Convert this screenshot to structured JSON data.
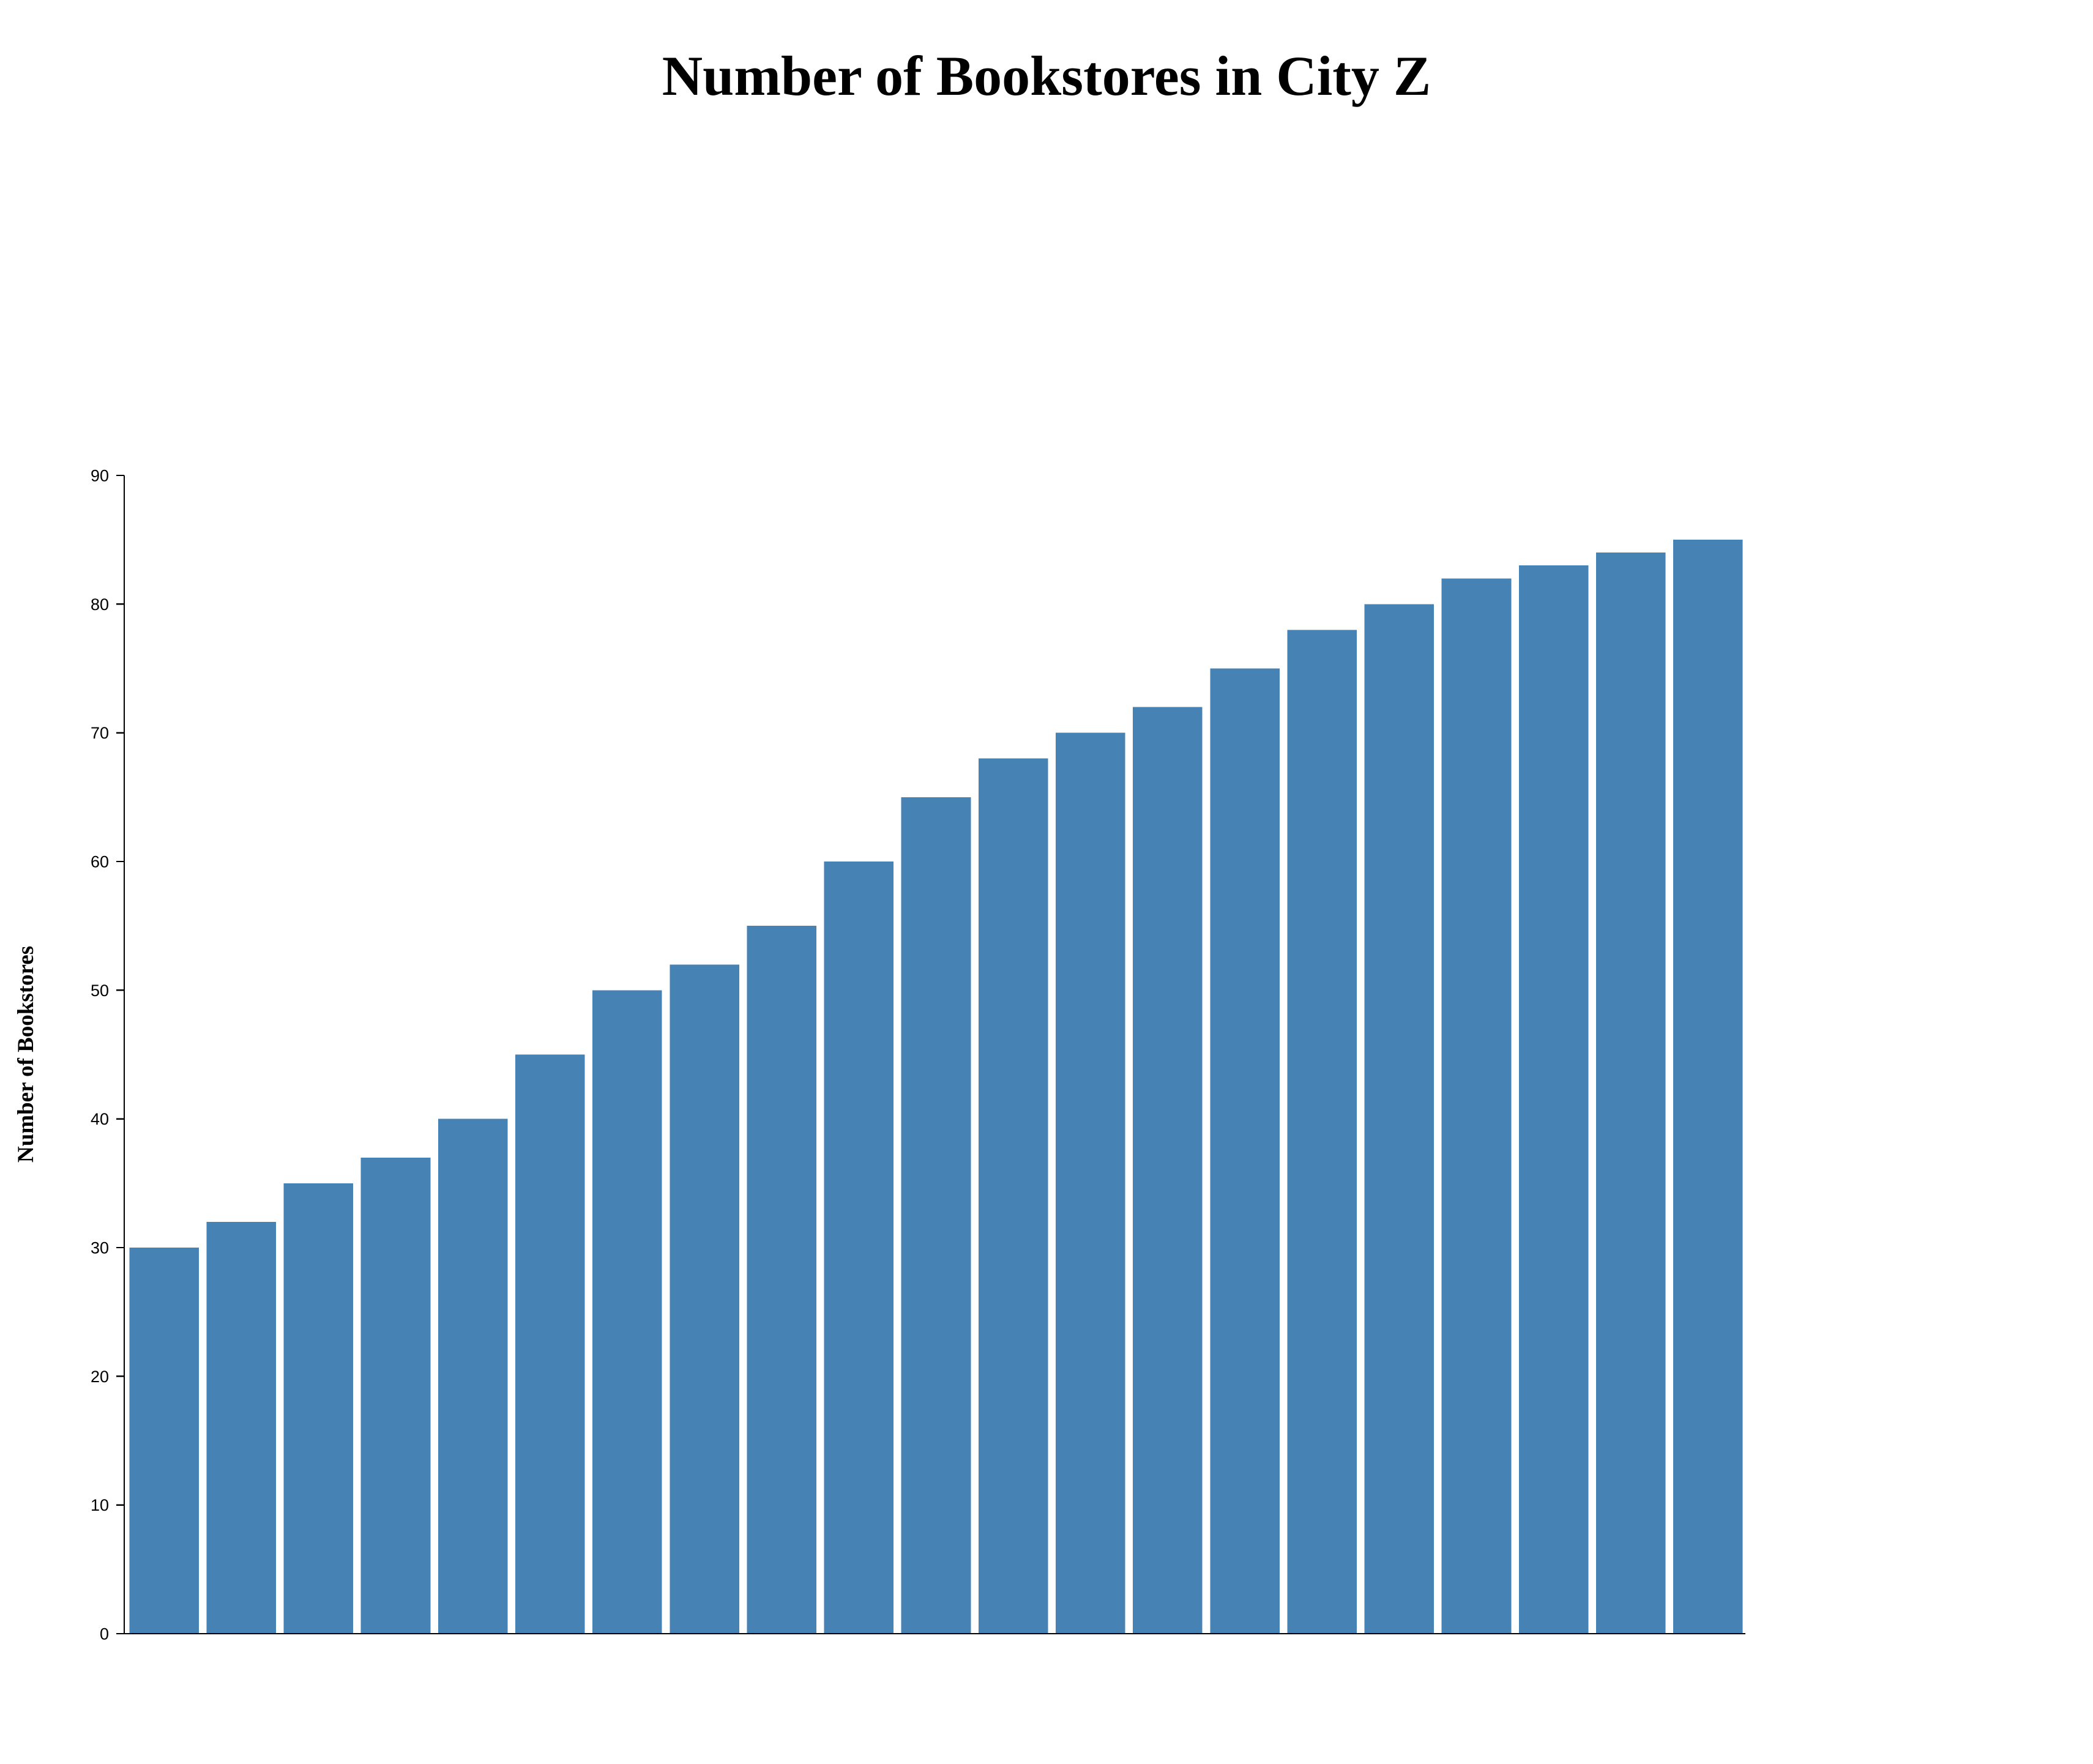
{
  "chart_data": {
    "type": "bar",
    "title": "Number of Bookstores in City Z",
    "xlabel": "",
    "ylabel": "Number of Bookstores",
    "categories": [
      "",
      "",
      "",
      "",
      "",
      "",
      "",
      "",
      "",
      "",
      "",
      "",
      "",
      "",
      "",
      "",
      "",
      "",
      "",
      "",
      ""
    ],
    "values": [
      30,
      32,
      35,
      37,
      40,
      45,
      50,
      52,
      55,
      60,
      65,
      68,
      70,
      72,
      75,
      78,
      80,
      82,
      83,
      84,
      85
    ],
    "ylim": [
      0,
      90
    ],
    "yticks": [
      "0",
      "10",
      "20",
      "30",
      "40",
      "50",
      "60",
      "70",
      "80",
      "90"
    ],
    "bar_color": "#4682b4",
    "grid": false,
    "legend": "none"
  }
}
